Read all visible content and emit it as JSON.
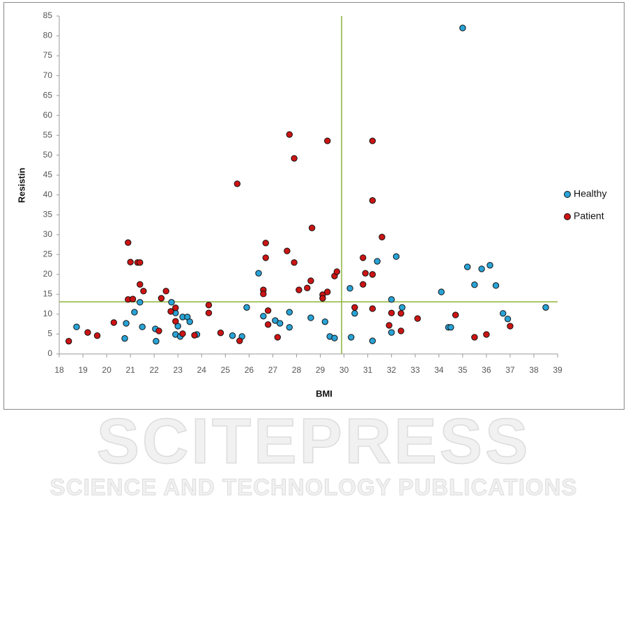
{
  "chart_data": {
    "type": "scatter",
    "x_label": "BMI",
    "y_label": "Resistin",
    "xlim": [
      18,
      39
    ],
    "ylim": [
      0,
      85
    ],
    "xticks": [
      18,
      19,
      20,
      21,
      22,
      23,
      24,
      25,
      26,
      27,
      28,
      29,
      30,
      31,
      32,
      33,
      34,
      35,
      36,
      37,
      38,
      39
    ],
    "yticks": [
      0,
      5,
      10,
      15,
      20,
      25,
      30,
      35,
      40,
      45,
      50,
      55,
      60,
      65,
      70,
      75,
      80,
      85
    ],
    "grid": false,
    "legend": "right",
    "reference_lines": [
      {
        "axis": "x",
        "value": 29.9
      },
      {
        "axis": "y",
        "value": 13.1
      }
    ],
    "reference_color": "#8db33a",
    "series": [
      {
        "name": "Healthy",
        "color": "#29a3d6",
        "x": [
          18.73,
          20.76,
          20.82,
          21.17,
          21.4,
          21.5,
          22.05,
          22.08,
          22.73,
          22.9,
          22.9,
          23.0,
          23.1,
          23.2,
          23.4,
          23.5,
          23.8,
          25.3,
          25.7,
          25.9,
          26.4,
          26.6,
          27.1,
          27.3,
          27.7,
          27.7,
          28.6,
          29.2,
          29.4,
          29.6,
          30.25,
          30.3,
          30.45,
          31.2,
          31.4,
          32.0,
          32.0,
          32.2,
          32.45,
          34.1,
          34.4,
          34.5,
          35.0,
          35.2,
          35.5,
          35.8,
          36.15,
          36.4,
          36.7,
          36.9,
          38.5
        ],
        "values": [
          6.8,
          3.9,
          7.7,
          10.5,
          13.0,
          6.8,
          6.3,
          3.2,
          13.0,
          10.3,
          4.9,
          7.0,
          4.4,
          9.3,
          9.3,
          8.1,
          4.9,
          4.6,
          4.4,
          11.7,
          20.3,
          9.5,
          8.4,
          7.7,
          10.5,
          6.7,
          9.1,
          8.1,
          4.4,
          4.0,
          16.5,
          4.2,
          10.2,
          3.3,
          23.3,
          13.7,
          5.4,
          24.5,
          11.7,
          15.6,
          6.7,
          6.7,
          82.0,
          21.9,
          17.4,
          21.4,
          22.3,
          17.2,
          10.2,
          8.8,
          11.7
        ]
      },
      {
        "name": "Patient",
        "color": "#cc1414",
        "x": [
          18.4,
          19.2,
          19.6,
          20.3,
          20.9,
          20.9,
          21.0,
          21.1,
          21.3,
          21.4,
          21.4,
          21.55,
          22.2,
          22.3,
          22.5,
          22.7,
          22.9,
          22.9,
          23.2,
          23.7,
          24.3,
          24.3,
          24.8,
          25.5,
          25.6,
          26.6,
          26.6,
          26.7,
          26.7,
          26.8,
          26.8,
          27.2,
          27.7,
          27.6,
          27.9,
          27.9,
          28.1,
          28.45,
          28.6,
          28.65,
          29.1,
          29.1,
          29.3,
          29.3,
          29.6,
          29.7,
          30.45,
          30.8,
          30.8,
          30.9,
          31.2,
          31.2,
          31.2,
          31.2,
          31.6,
          31.9,
          32.0,
          32.4,
          32.4,
          33.1,
          34.7,
          35.5,
          36.0,
          37.0
        ],
        "values": [
          3.2,
          5.4,
          4.6,
          7.9,
          28.0,
          13.7,
          23.1,
          13.8,
          23.0,
          23.0,
          17.5,
          15.8,
          5.8,
          14.0,
          15.8,
          10.7,
          8.2,
          11.6,
          5.1,
          4.7,
          12.3,
          10.3,
          5.3,
          42.8,
          3.3,
          16.1,
          15.1,
          27.9,
          24.2,
          10.9,
          7.4,
          4.2,
          55.2,
          25.9,
          23.0,
          49.2,
          16.1,
          16.6,
          18.4,
          31.7,
          14.9,
          14.0,
          53.6,
          15.6,
          19.6,
          20.7,
          11.7,
          24.2,
          17.5,
          20.3,
          20.0,
          11.4,
          53.6,
          38.6,
          29.4,
          7.2,
          10.3,
          10.2,
          5.8,
          8.9,
          9.8,
          4.2,
          4.9,
          7.0
        ]
      }
    ]
  },
  "watermark": {
    "title": "SCITEPRESS",
    "subtitle": "SCIENCE AND TECHNOLOGY PUBLICATIONS"
  }
}
